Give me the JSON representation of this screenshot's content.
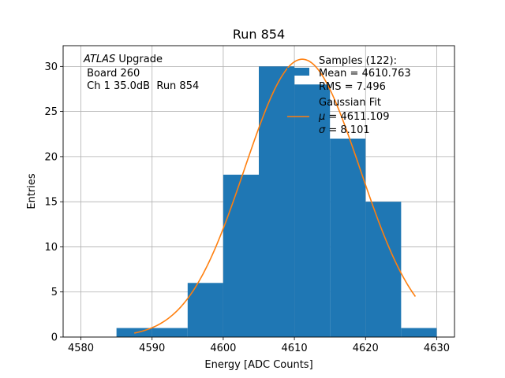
{
  "chart_data": {
    "type": "bar",
    "title": "Run 854",
    "xlabel": "Energy [ADC Counts]",
    "ylabel": "Entries",
    "xlim": [
      4577.5,
      4632.5
    ],
    "ylim": [
      0,
      32.3
    ],
    "grid": true,
    "x_ticks": [
      4580,
      4590,
      4600,
      4610,
      4620,
      4630
    ],
    "y_ticks": [
      0,
      5,
      10,
      15,
      20,
      25,
      30
    ],
    "histogram": {
      "name": "Samples (122):",
      "bin_edges": [
        4585,
        4590,
        4595,
        4600,
        4605,
        4610,
        4615,
        4620,
        4625,
        4630
      ],
      "counts": [
        1,
        1,
        6,
        18,
        30,
        28,
        22,
        15,
        1
      ],
      "color": "#1f77b4"
    },
    "fit": {
      "name": "Gaussian Fit",
      "mu": 4611.109,
      "sigma": 8.101,
      "amplitude": 30.8,
      "x_range": [
        4587.5,
        4627
      ],
      "color": "#ff7f0e"
    },
    "annotation": {
      "line1_italic": "ATLAS",
      "line1_rest": " Upgrade",
      "line2": " Board 260",
      "line3": " Ch 1 35.0dB  Run 854"
    },
    "legend": {
      "position": "top-right",
      "samples_label": "Samples (122):",
      "samples_mean": "Mean = 4610.763",
      "samples_rms": "RMS = 7.496",
      "fit_label": "Gaussian Fit",
      "fit_mu_symbol": "μ",
      "fit_mu_value": " = 4611.109",
      "fit_sigma_symbol": "σ",
      "fit_sigma_value": " = 8.101"
    }
  }
}
